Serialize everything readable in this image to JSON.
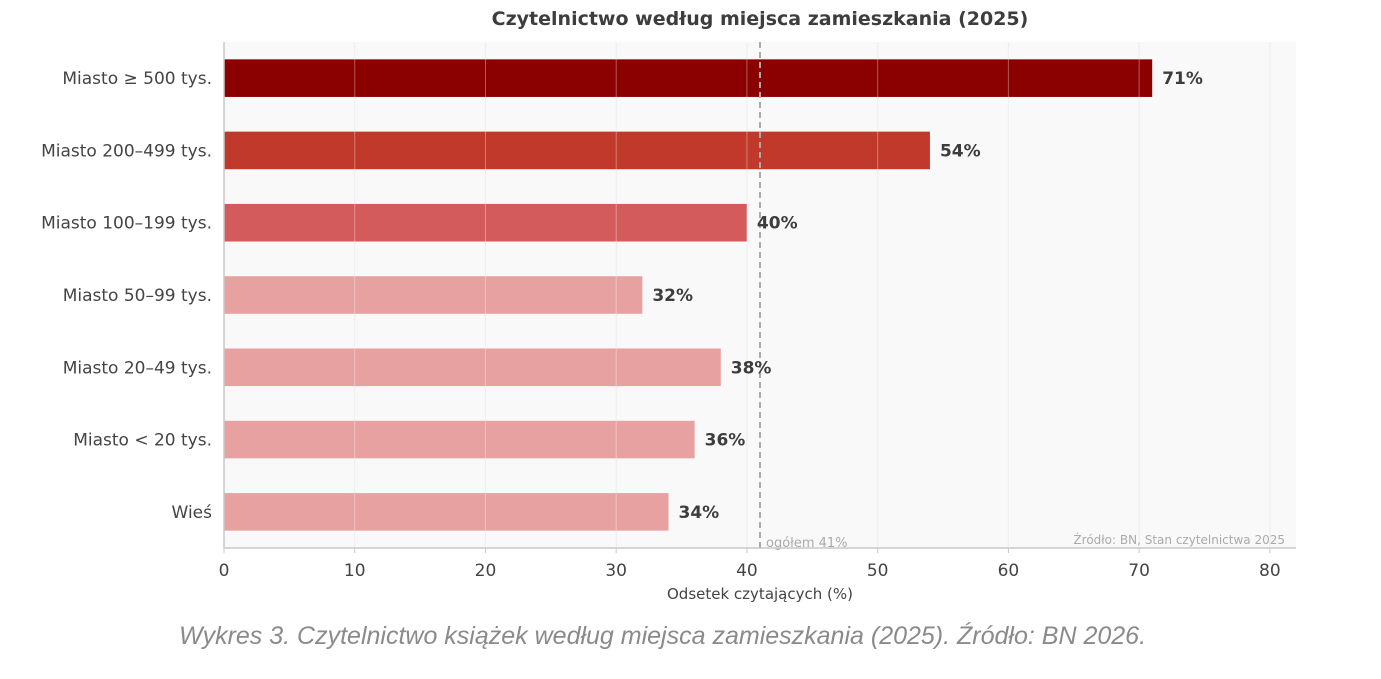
{
  "chart_data": {
    "type": "bar",
    "orientation": "horizontal",
    "title": "Czytelnictwo według miejsca zamieszkania (2025)",
    "xlabel": "Odsetek czytających (%)",
    "ylabel": "",
    "xlim": [
      0,
      82
    ],
    "xticks": [
      0,
      10,
      20,
      30,
      40,
      50,
      60,
      70,
      80
    ],
    "grid": "vertical",
    "categories": [
      "Miasto ≥ 500 tys.",
      "Miasto 200–499 tys.",
      "Miasto 100–199 tys.",
      "Miasto 50–99 tys.",
      "Miasto 20–49 tys.",
      "Miasto < 20 tys.",
      "Wieś"
    ],
    "values": [
      71,
      54,
      40,
      32,
      38,
      36,
      34
    ],
    "value_labels": [
      "71%",
      "54%",
      "40%",
      "32%",
      "38%",
      "36%",
      "34%"
    ],
    "bar_colors": [
      "#8b0000",
      "#c0392b",
      "#d45b5b",
      "#e8a1a1",
      "#e8a1a1",
      "#e8a1a1",
      "#e8a1a1"
    ],
    "reference_line": {
      "value": 41,
      "label": "ogółem 41%",
      "color": "#aaaaaa",
      "style": "dashed"
    },
    "source_note": "Źródło: BN, Stan czytelnictwa 2025"
  },
  "caption": "Wykres 3. Czytelnictwo książek według miejsca zamieszkania (2025). Źródło: BN 2026."
}
